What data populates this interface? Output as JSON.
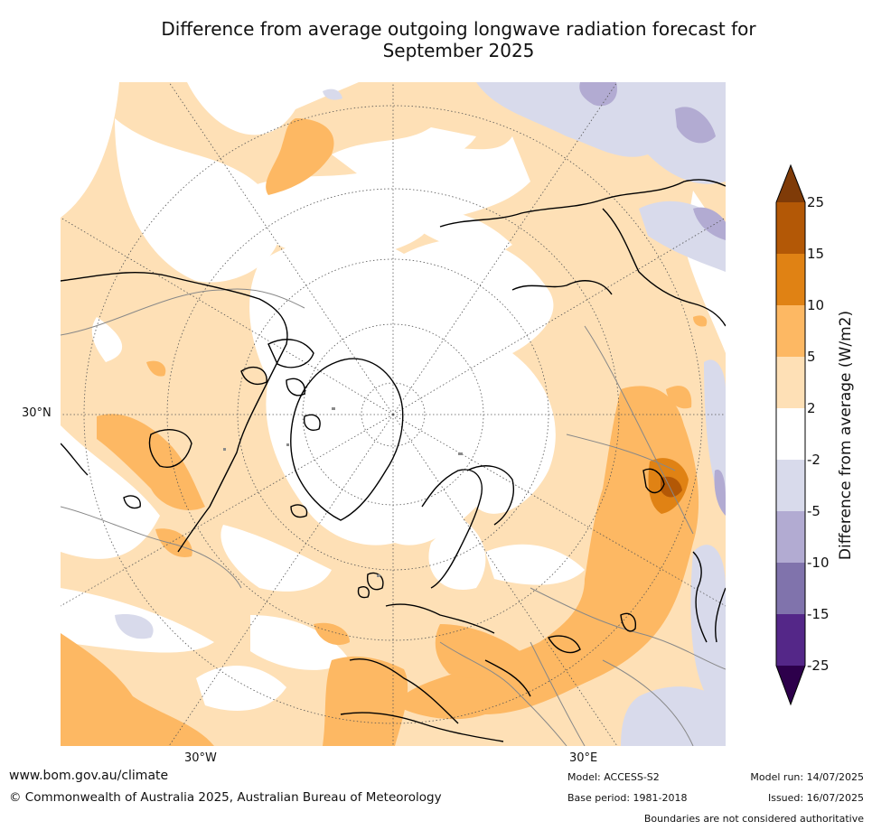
{
  "title_line1": "Difference from average outgoing longwave radiation forecast for",
  "title_line2": "September 2025",
  "map_labels": {
    "lat_30n": "30°N",
    "lon_30w": "30°W",
    "lon_30e": "30°E"
  },
  "colorbar": {
    "title": "Difference from average (W/m2)",
    "ticks": [
      "25",
      "15",
      "10",
      "5",
      "2",
      "-2",
      "-5",
      "-10",
      "-15",
      "-25"
    ],
    "colors": {
      "over": "#7f3b08",
      "b15_25": "#b35806",
      "b10_15": "#e08214",
      "b5_10": "#fdb863",
      "b2_5": "#fee0b6",
      "b_neutral": "#ffffff",
      "b_m5_m2": "#d8daeb",
      "b_m10_m5": "#b2abd2",
      "b_m15_m10": "#8073ac",
      "b_m25_m15": "#542788",
      "under": "#2d004b"
    }
  },
  "footer": {
    "website": "www.bom.gov.au/climate",
    "copyright": "© Commonwealth of Australia 2025, Australian Bureau of Meteorology",
    "model": "Model: ACCESS-S2",
    "base_period": "Base period: 1981-2018",
    "model_run": "Model run: 14/07/2025",
    "issued": "Issued: 16/07/2025",
    "disclaimer": "Boundaries are not considered authoritative"
  }
}
